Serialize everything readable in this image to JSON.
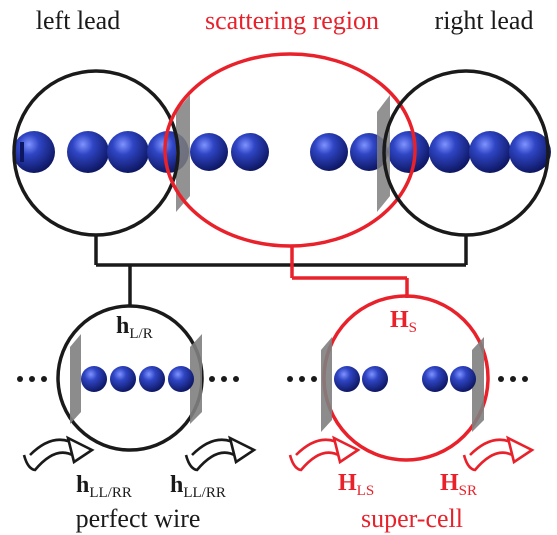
{
  "labels": {
    "left_lead": "left lead",
    "scattering_region": "scattering region",
    "right_lead": "right lead",
    "perfect_wire": "perfect wire",
    "super_cell": "super-cell"
  },
  "hamiltonians": {
    "h_lr": {
      "symbol": "h",
      "sub": "L/R"
    },
    "h_ll_rr_left": {
      "symbol": "h",
      "sub": "LL/RR"
    },
    "h_ll_rr_right": {
      "symbol": "h",
      "sub": "LL/RR"
    },
    "H_s": {
      "symbol": "H",
      "sub": "S"
    },
    "H_ls": {
      "symbol": "H",
      "sub": "LS"
    },
    "H_sr": {
      "symbol": "H",
      "sub": "SR"
    }
  },
  "colors": {
    "black": "#1a1a1a",
    "red": "#e8212b",
    "sphere": "#2a3fb0",
    "sphere_dark": "#0d1660",
    "plane": "#7f7f7f"
  }
}
